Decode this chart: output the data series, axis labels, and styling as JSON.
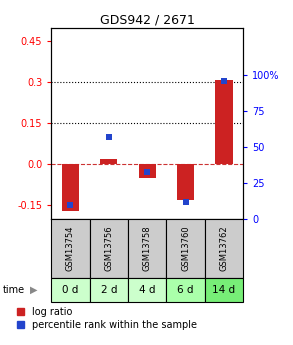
{
  "title": "GDS942 / 2671",
  "samples": [
    "GSM13754",
    "GSM13756",
    "GSM13758",
    "GSM13760",
    "GSM13762"
  ],
  "time_labels": [
    "0 d",
    "2 d",
    "4 d",
    "6 d",
    "14 d"
  ],
  "log_ratio": [
    -0.17,
    0.02,
    -0.05,
    -0.13,
    0.31
  ],
  "percentile_rank": [
    10,
    57,
    33,
    12,
    96
  ],
  "ylim_left": [
    -0.2,
    0.5
  ],
  "ylim_right": [
    0,
    133.33
  ],
  "yticks_left": [
    -0.15,
    0.0,
    0.15,
    0.3,
    0.45
  ],
  "yticks_right": [
    0,
    25,
    50,
    75,
    100
  ],
  "bar_color_red": "#cc2222",
  "dot_color_blue": "#2244cc",
  "hline_zero_color": "#cc3333",
  "sample_bg_color": "#cccccc",
  "time_bg_colors": [
    "#ccffcc",
    "#ccffcc",
    "#ccffcc",
    "#aaffaa",
    "#77ee77"
  ],
  "bar_width": 0.45,
  "dot_size": 22,
  "legend_labels": [
    "log ratio",
    "percentile rank within the sample"
  ],
  "time_label": "time"
}
